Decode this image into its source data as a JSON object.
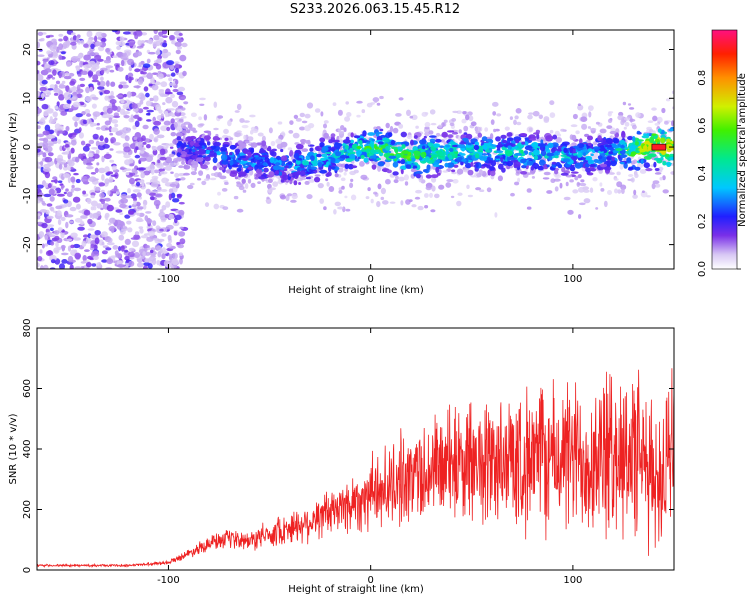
{
  "title": "S233.2026.063.15.45.R12",
  "chart_data": [
    {
      "type": "heatmap",
      "name": "spectrogram",
      "xlabel": "Height of straight line (km)",
      "ylabel": "Frequency (Hz)",
      "xlim": [
        -165,
        150
      ],
      "ylim": [
        -25,
        24
      ],
      "x_ticks": [
        -100,
        0,
        100
      ],
      "y_ticks": [
        -20,
        -10,
        0,
        10,
        20
      ],
      "colorbar": {
        "label": "Normalized spectral amplitude",
        "range": [
          0.0,
          1.0
        ],
        "ticks": [
          "0.0",
          "0.2",
          "0.4",
          "0.6",
          "0.8"
        ],
        "tick_values": [
          0.0,
          0.2,
          0.4,
          0.6,
          0.8
        ]
      },
      "ridge": {
        "x": [
          -95,
          -80,
          -60,
          -40,
          -20,
          0,
          20,
          40,
          60,
          80,
          100,
          120,
          140
        ],
        "freq": [
          0,
          -1,
          -3,
          -4,
          -2,
          0,
          -2,
          -1,
          -1,
          -1,
          -2,
          -1,
          0
        ],
        "amplitude": [
          0.25,
          0.3,
          0.35,
          0.35,
          0.45,
          0.6,
          0.6,
          0.5,
          0.45,
          0.45,
          0.4,
          0.4,
          0.95
        ]
      }
    },
    {
      "type": "line",
      "name": "snr",
      "xlabel": "Height of straight line (km)",
      "ylabel": "SNR (10 * v/v)",
      "xlim": [
        -165,
        150
      ],
      "ylim": [
        0,
        800
      ],
      "x_ticks": [
        -100,
        0,
        100
      ],
      "y_ticks": [
        0,
        200,
        400,
        600,
        800
      ],
      "series": [
        {
          "name": "SNR",
          "color": "#ee2222",
          "x": [
            -165,
            -140,
            -120,
            -100,
            -90,
            -80,
            -70,
            -60,
            -50,
            -40,
            -30,
            -20,
            -10,
            0,
            10,
            20,
            30,
            40,
            60,
            80,
            100,
            120,
            130,
            140,
            150
          ],
          "values": [
            15,
            15,
            15,
            25,
            55,
            90,
            100,
            95,
            120,
            140,
            160,
            190,
            220,
            250,
            280,
            310,
            330,
            350,
            360,
            365,
            370,
            380,
            390,
            300,
            360
          ]
        }
      ]
    }
  ],
  "colors": {
    "background": "#ffffff",
    "line": "#ee2222",
    "axis": "#000000"
  }
}
